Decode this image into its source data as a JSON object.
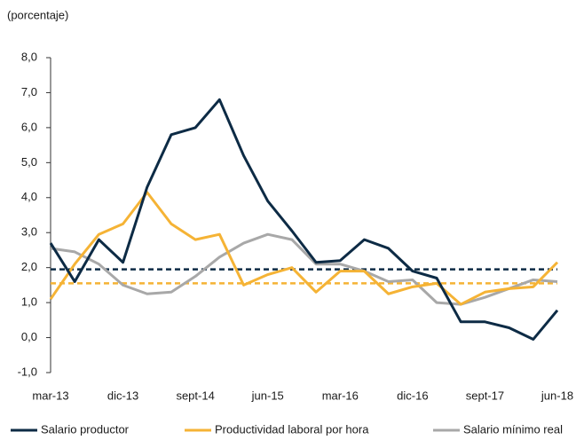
{
  "chart_data": {
    "type": "line",
    "y_label": "(porcentaje)",
    "categories": [
      "mar-13",
      null,
      null,
      "dic-13",
      null,
      null,
      "sept-14",
      null,
      null,
      "jun-15",
      null,
      null,
      "mar-16",
      null,
      null,
      "dic-16",
      null,
      null,
      "sept-17",
      null,
      null,
      "jun-18"
    ],
    "series": [
      {
        "name": "Salario productor",
        "color": "#0d2b45",
        "values": [
          2.7,
          1.6,
          2.8,
          2.15,
          4.3,
          5.8,
          6.0,
          6.8,
          5.2,
          3.9,
          3.05,
          2.15,
          2.2,
          2.8,
          2.55,
          1.9,
          1.7,
          0.45,
          0.45,
          0.28,
          -0.05,
          0.78
        ]
      },
      {
        "name": "Productividad laboral por hora",
        "color": "#f5b335",
        "values": [
          1.1,
          2.1,
          2.95,
          3.25,
          4.15,
          3.25,
          2.8,
          2.95,
          1.5,
          1.8,
          2.0,
          1.3,
          1.9,
          1.9,
          1.25,
          1.45,
          1.55,
          0.95,
          1.3,
          1.4,
          1.45,
          2.15
        ]
      },
      {
        "name": "Salario mínimo real",
        "color": "#a8a8a8",
        "values": [
          2.55,
          2.45,
          2.1,
          1.5,
          1.25,
          1.3,
          1.75,
          2.3,
          2.7,
          2.95,
          2.8,
          2.1,
          2.1,
          1.9,
          1.6,
          1.65,
          1.0,
          0.95,
          1.15,
          1.4,
          1.65,
          1.6
        ]
      }
    ],
    "reference_lines": [
      {
        "value": 1.95,
        "color": "#0d2b45"
      },
      {
        "value": 1.55,
        "color": "#f5b335"
      }
    ],
    "ylim": [
      -1,
      8
    ],
    "yticks": [
      {
        "value": -1,
        "label": "-1,0"
      },
      {
        "value": 0,
        "label": "0,0"
      },
      {
        "value": 1,
        "label": "1,0"
      },
      {
        "value": 2,
        "label": "2,0"
      },
      {
        "value": 3,
        "label": "3,0"
      },
      {
        "value": 4,
        "label": "4,0"
      },
      {
        "value": 5,
        "label": "5,0"
      },
      {
        "value": 6,
        "label": "6,0"
      },
      {
        "value": 7,
        "label": "7,0"
      },
      {
        "value": 8,
        "label": "8,0"
      }
    ],
    "grid": false
  }
}
